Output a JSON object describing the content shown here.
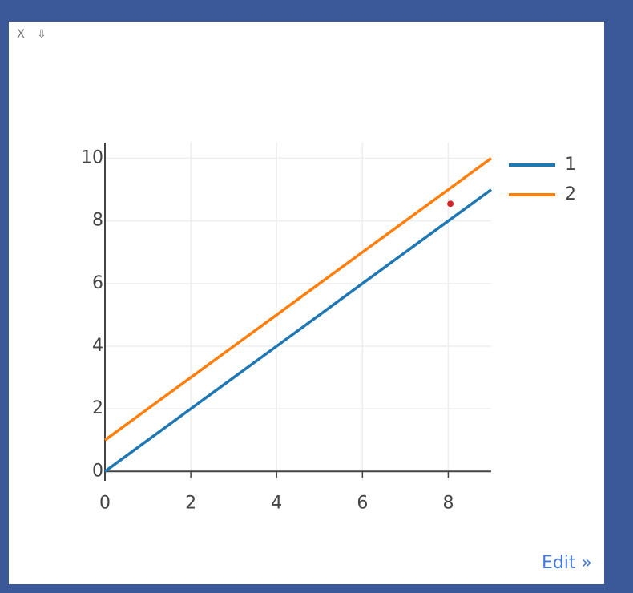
{
  "toolbar": [
    "X",
    "⇩"
  ],
  "edit_link": "Edit »",
  "chart_data": {
    "type": "line",
    "x": [
      0,
      1,
      2,
      3,
      4,
      5,
      6,
      7,
      8,
      9
    ],
    "series": [
      {
        "name": "1",
        "color": "#1f77b4",
        "values": [
          0,
          1,
          2,
          3,
          4,
          5,
          6,
          7,
          8,
          9
        ]
      },
      {
        "name": "2",
        "color": "#ff7f0e",
        "values": [
          1,
          2,
          3,
          4,
          5,
          6,
          7,
          8,
          9,
          10
        ]
      }
    ],
    "marker": {
      "x": 8.05,
      "y": 8.55,
      "color": "#d62728"
    },
    "xlim": [
      0,
      9
    ],
    "ylim": [
      -0.3,
      10.5
    ],
    "xticks": [
      0,
      2,
      4,
      6,
      8
    ],
    "yticks": [
      0,
      2,
      4,
      6,
      8,
      10
    ],
    "grid": true,
    "legend": "right"
  }
}
